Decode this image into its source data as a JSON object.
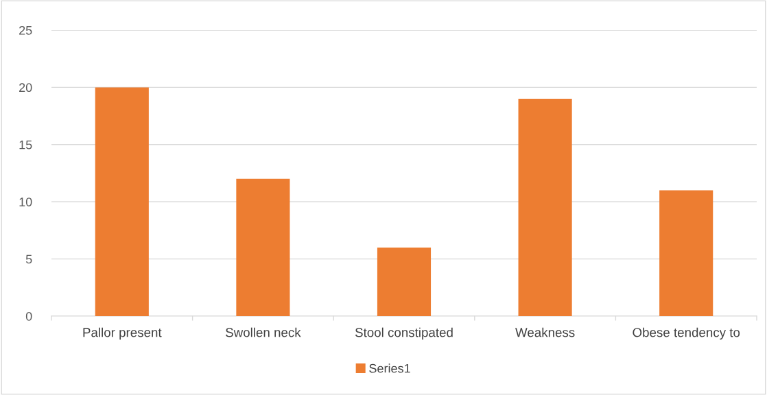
{
  "chart_data": {
    "type": "bar",
    "categories": [
      "Pallor present",
      "Swollen neck",
      "Stool constipated",
      "Weakness",
      "Obese tendency to"
    ],
    "series": [
      {
        "name": "Series1",
        "color": "#ed7d31",
        "values": [
          20,
          12,
          6,
          19,
          11
        ]
      }
    ],
    "ylim": [
      0,
      25
    ],
    "yticks": [
      0,
      5,
      10,
      15,
      20,
      25
    ],
    "grid": "y",
    "legend": "bottom"
  }
}
